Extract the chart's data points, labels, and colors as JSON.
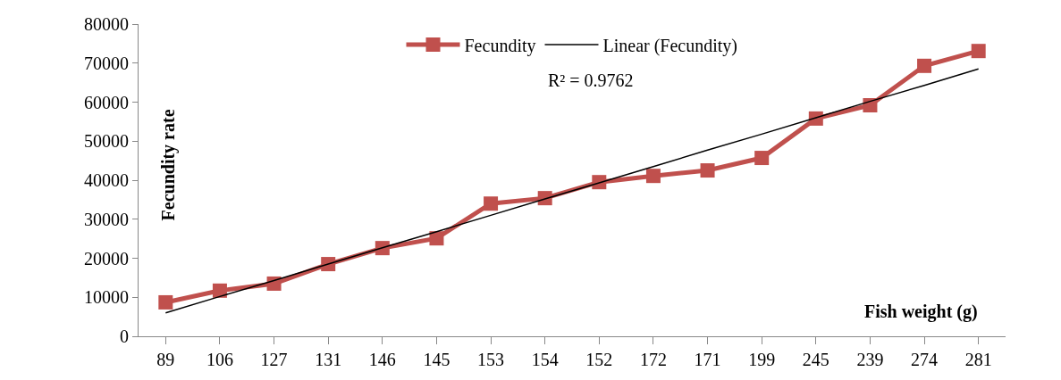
{
  "chart_data": {
    "type": "line",
    "xlabel": "Fish weight (g)",
    "ylabel": "Fecundity rate",
    "categories": [
      "89",
      "106",
      "127",
      "131",
      "146",
      "145",
      "153",
      "154",
      "152",
      "172",
      "171",
      "199",
      "245",
      "239",
      "274",
      "281"
    ],
    "series": [
      {
        "name": "Fecundity",
        "color": "#c0504d",
        "marker": "square",
        "values": [
          8700,
          11700,
          13500,
          18500,
          22600,
          25100,
          34000,
          35400,
          39500,
          41100,
          42500,
          45700,
          55800,
          59200,
          69300,
          73100
        ]
      },
      {
        "name": "Linear (Fecundity)",
        "type": "line",
        "color": "#000000",
        "marker": "none",
        "values": [
          6000,
          10200,
          14300,
          18500,
          22700,
          26800,
          31000,
          35200,
          39300,
          43500,
          47700,
          51800,
          56000,
          60200,
          64300,
          68500
        ]
      }
    ],
    "annotations": [
      "R² = 0.9762"
    ],
    "ylim": [
      0,
      80000
    ],
    "yticks": [
      0,
      10000,
      20000,
      30000,
      40000,
      50000,
      60000,
      70000,
      80000
    ],
    "legend": "top",
    "line_style": "solid"
  }
}
